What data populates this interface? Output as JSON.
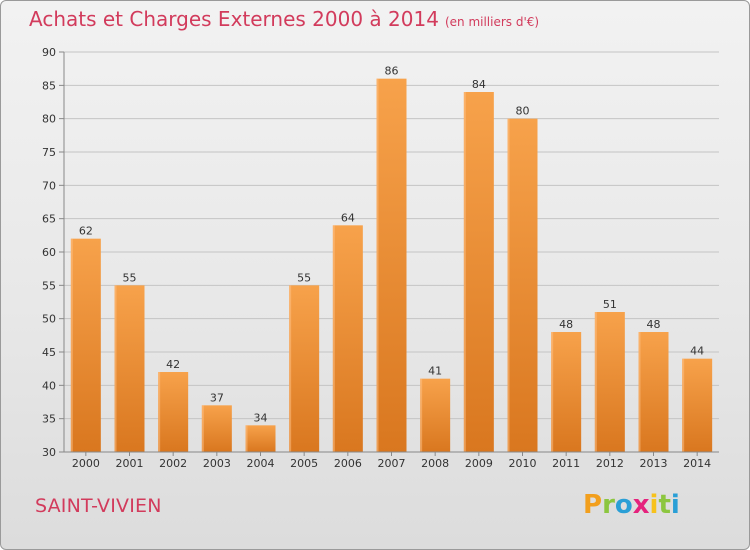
{
  "header": {
    "title": "Achats et Charges Externes 2000 à 2014",
    "unit": "(en milliers d'€)"
  },
  "footer": {
    "place": "SAINT-VIVIEN",
    "logo_letters": [
      "P",
      "r",
      "o",
      "x",
      "i",
      "t",
      "i"
    ],
    "logo_colors": [
      "#f29f1d",
      "#8cc63f",
      "#2a9fd6",
      "#e5237d",
      "#f7c21b",
      "#8cc63f",
      "#2a9fd6"
    ]
  },
  "colors": {
    "bar_light": "#f7a24b",
    "bar_dark": "#d9771f",
    "grid": "#c4c4c4",
    "axis": "#888888"
  },
  "chart_data": {
    "type": "bar",
    "title": "Achats et Charges Externes 2000 à 2014",
    "subtitle": "(en milliers d'€)",
    "categories": [
      "2000",
      "2001",
      "2002",
      "2003",
      "2004",
      "2005",
      "2006",
      "2007",
      "2008",
      "2009",
      "2010",
      "2011",
      "2012",
      "2013",
      "2014"
    ],
    "values": [
      62,
      55,
      42,
      37,
      34,
      55,
      64,
      86,
      41,
      84,
      80,
      48,
      51,
      48,
      44
    ],
    "ylim": [
      30,
      90
    ],
    "yticks": [
      30,
      35,
      40,
      45,
      50,
      55,
      60,
      65,
      70,
      75,
      80,
      85,
      90
    ],
    "grid": "horizontal",
    "xlabel": "",
    "ylabel": ""
  }
}
